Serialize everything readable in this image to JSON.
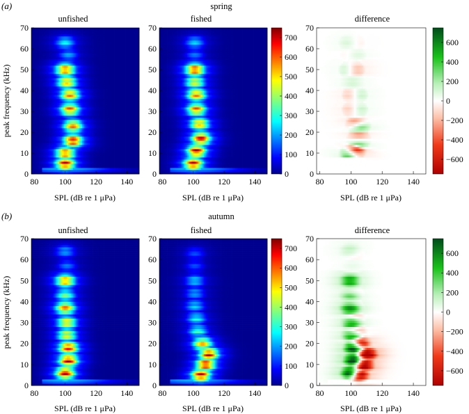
{
  "chart_data": [
    {
      "type": "heatmap",
      "panel_label": "(a)",
      "row_title": "spring",
      "panels": [
        {
          "title": "unfished",
          "kind": "density",
          "hotspots": [
            [
              100,
              5,
              1.0
            ],
            [
              100,
              10,
              0.9
            ],
            [
              105,
              16,
              1.0
            ],
            [
              105,
              23,
              0.85
            ],
            [
              103,
              31,
              0.85
            ],
            [
              103,
              38,
              0.85
            ],
            [
              101,
              44,
              0.8
            ],
            [
              100,
              50,
              0.9
            ],
            [
              102,
              57,
              0.3
            ],
            [
              100,
              63,
              0.4
            ]
          ]
        },
        {
          "title": "fished",
          "kind": "density",
          "hotspots": [
            [
              100,
              5,
              1.0
            ],
            [
              102,
              11,
              1.0
            ],
            [
              105,
              17,
              1.0
            ],
            [
              104,
              24,
              0.8
            ],
            [
              102,
              31,
              0.85
            ],
            [
              102,
              38,
              0.85
            ],
            [
              101,
              44,
              0.7
            ],
            [
              101,
              50,
              0.95
            ],
            [
              101,
              57,
              0.25
            ],
            [
              101,
              63,
              0.35
            ]
          ]
        },
        {
          "title": "difference",
          "kind": "difference"
        }
      ],
      "colorbars": [
        {
          "type": "jet",
          "ticks": [
            "0",
            "100",
            "200",
            "300",
            "400",
            "500",
            "600",
            "700"
          ]
        },
        {
          "type": "diverging",
          "ticks": [
            "−600",
            "−400",
            "−200",
            "0",
            "200",
            "400",
            "600"
          ]
        }
      ],
      "xlabel": "SPL (dB re 1 μPa)",
      "ylabel": "peak frequency (kHz)",
      "xticks": [
        "80",
        "100",
        "120",
        "140"
      ],
      "yticks": [
        "0",
        "10",
        "20",
        "30",
        "40",
        "50",
        "60",
        "70"
      ],
      "xlim": [
        78,
        148
      ],
      "ylim": [
        0,
        70
      ],
      "density_range": [
        0,
        750
      ],
      "difference_range": [
        -750,
        750
      ]
    },
    {
      "type": "heatmap",
      "panel_label": "(b)",
      "row_title": "autumn",
      "panels": [
        {
          "title": "unfished",
          "kind": "density",
          "hotspots": [
            [
              100,
              6,
              1.0
            ],
            [
              102,
              12,
              1.0
            ],
            [
              102,
              18,
              0.95
            ],
            [
              101,
              24,
              0.7
            ],
            [
              101,
              30,
              0.75
            ],
            [
              100,
              37,
              0.85
            ],
            [
              100,
              43,
              0.55
            ],
            [
              100,
              50,
              0.85
            ],
            [
              101,
              57,
              0.25
            ],
            [
              100,
              64,
              0.3
            ]
          ]
        },
        {
          "title": "fished",
          "kind": "density",
          "hotspots": [
            [
              105,
              5,
              1.0
            ],
            [
              108,
              10,
              1.0
            ],
            [
              110,
              15,
              1.0
            ],
            [
              106,
              20,
              0.8
            ],
            [
              103,
              26,
              0.45
            ],
            [
              102,
              32,
              0.4
            ],
            [
              101,
              38,
              0.35
            ],
            [
              101,
              44,
              0.3
            ],
            [
              101,
              50,
              0.35
            ],
            [
              101,
              57,
              0.2
            ],
            [
              101,
              63,
              0.2
            ]
          ]
        },
        {
          "title": "difference",
          "kind": "difference"
        }
      ],
      "colorbars": [
        {
          "type": "jet",
          "ticks": [
            "0",
            "100",
            "200",
            "300",
            "400",
            "500",
            "600",
            "700"
          ]
        },
        {
          "type": "diverging",
          "ticks": [
            "−600",
            "−400",
            "−200",
            "0",
            "200",
            "400",
            "600"
          ]
        }
      ],
      "xlabel": "SPL (dB re 1 μPa)",
      "ylabel": "peak frequency (kHz)",
      "xticks": [
        "80",
        "100",
        "120",
        "140"
      ],
      "yticks": [
        "0",
        "10",
        "20",
        "30",
        "40",
        "50",
        "60",
        "70"
      ],
      "xlim": [
        78,
        148
      ],
      "ylim": [
        0,
        70
      ],
      "density_range": [
        0,
        750
      ],
      "difference_range": [
        -750,
        750
      ]
    }
  ]
}
